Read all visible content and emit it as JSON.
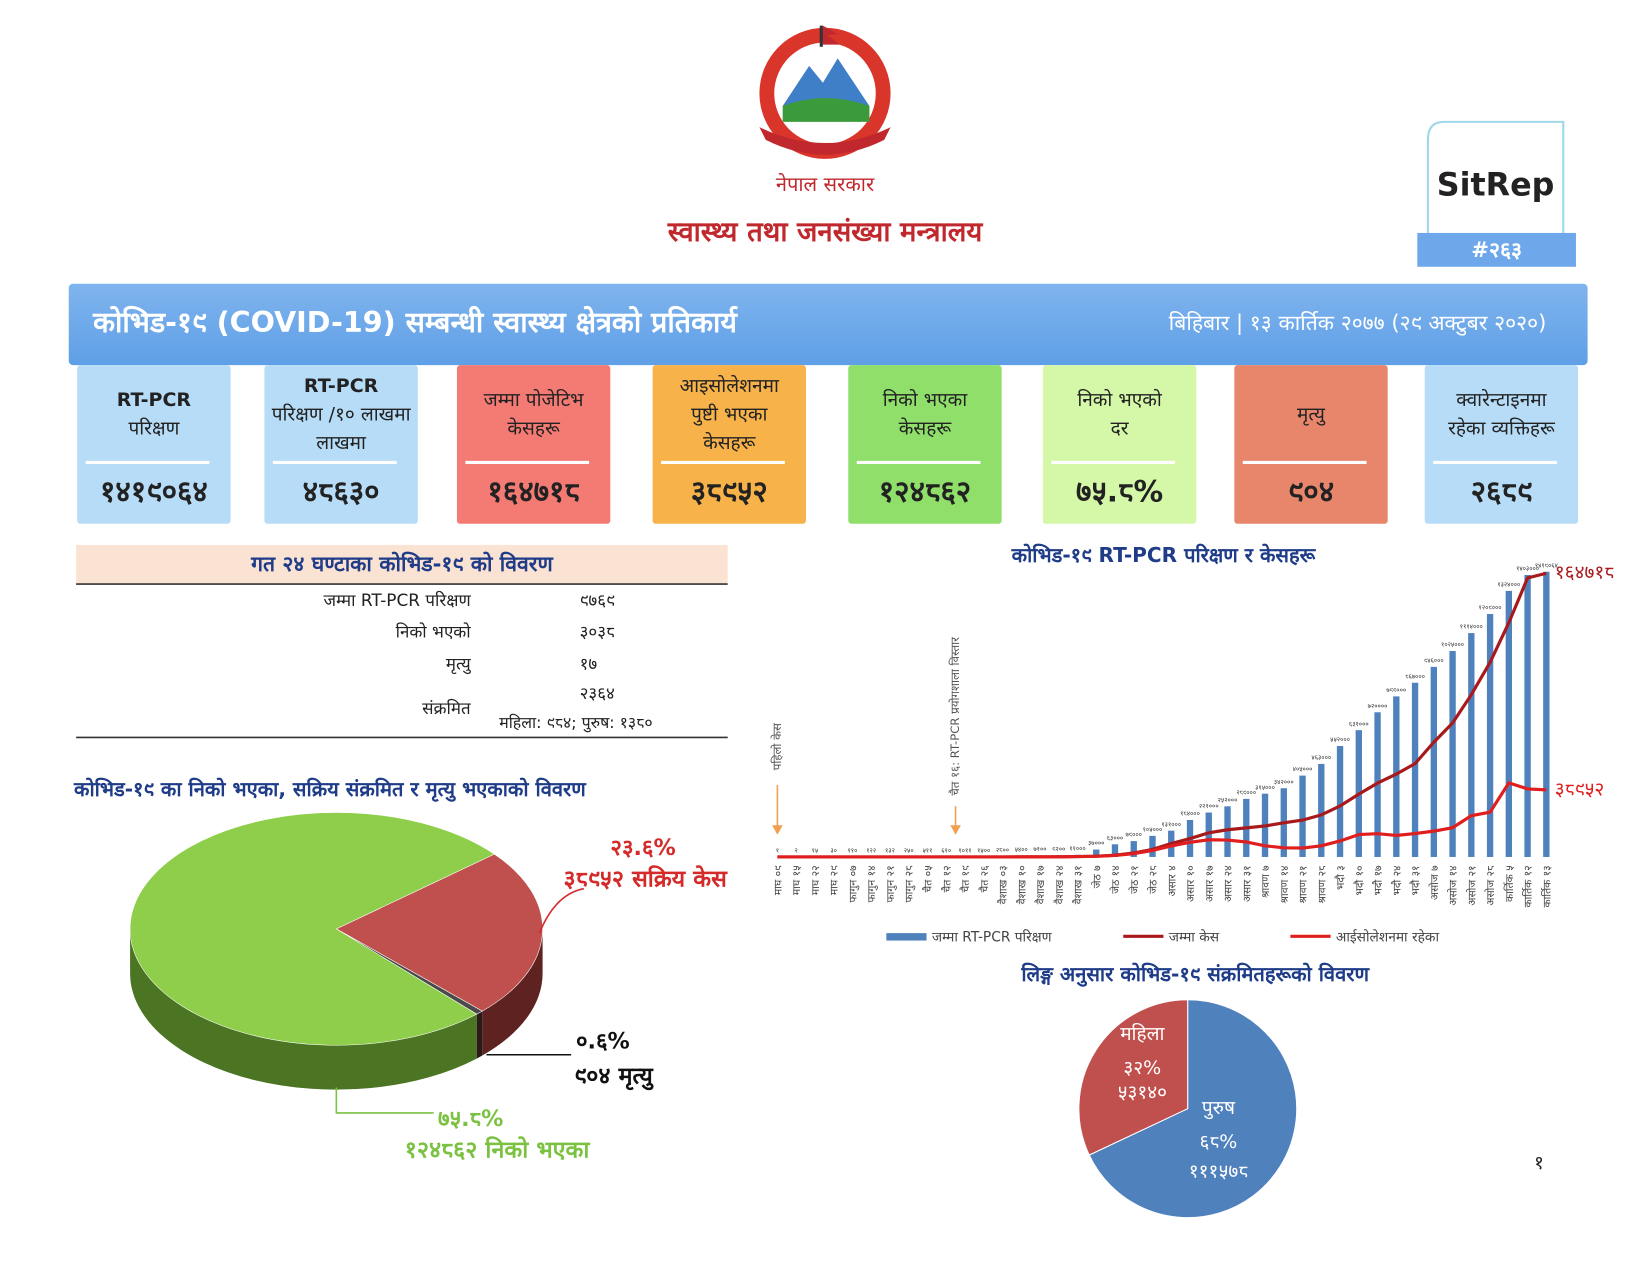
{
  "header": {
    "government": "नेपाल सरकार",
    "ministry": "स्वास्थ्य तथा जनसंख्या मन्त्रालय",
    "sitrep": "SitRep",
    "sitrep_number": "#२६३"
  },
  "banner": {
    "title": "कोभिड-१९ (COVID-19) सम्बन्धी स्वास्थ्य क्षेत्रको प्रतिकार्य",
    "date": "बिहिबार | १३ कार्तिक २०७७ (२९ अक्टुबर २०२०)"
  },
  "cards": [
    {
      "title": [
        "RT-PCR",
        "परिक्षण"
      ],
      "value": "१४१९०६४",
      "color": "#b7dcf7"
    },
    {
      "title": [
        "RT-PCR",
        "परिक्षण /१० लाखमा",
        "लाखमा"
      ],
      "value": "४८६३०",
      "color": "#b7dcf7"
    },
    {
      "title": [
        "जम्मा पोजेटिभ",
        "केसहरू"
      ],
      "value": "१६४७१८",
      "color": "#f47a74"
    },
    {
      "title": [
        "आइसोलेशनमा",
        "पुष्टी भएका",
        "केसहरू"
      ],
      "value": "३८९५२",
      "color": "#f7b24a"
    },
    {
      "title": [
        "निको भएका",
        "केसहरू"
      ],
      "value": "१२४८६२",
      "color": "#8fdf6a"
    },
    {
      "title": [
        "निको भएको",
        "दर"
      ],
      "value": "७५.८%",
      "color": "#d4f7a8"
    },
    {
      "title": [
        "मृत्यु"
      ],
      "value": "९०४",
      "color": "#e8866c"
    },
    {
      "title": [
        "क्वारेन्टाइनमा",
        "रहेका व्यक्तिहरू"
      ],
      "value": "२६८९",
      "color": "#b7dcf7"
    }
  ],
  "last_24h": {
    "title": "गत २४ घण्टाका कोभिड-१९ को विवरण",
    "rows": [
      [
        "जम्मा RT-PCR परिक्षण",
        "९७६९"
      ],
      [
        "निको भएको",
        "३०३८"
      ],
      [
        "मृत्यु",
        "१७"
      ],
      [
        "संक्रमित",
        "२३६४"
      ]
    ],
    "infected_detail": "महिला: ९८४; पुरुष: १३८०"
  },
  "outcome_pie": {
    "type": "pie",
    "title": "कोभिड-१९ का निको भएका, सक्रिय संक्रमित र मृत्यु भएकाको विवरण",
    "values": [
      23.6,
      0.6,
      75.8
    ],
    "value_labels": [
      "२३.६%",
      "०.६%",
      "७५.८%"
    ],
    "labels": [
      "३८९५२ सक्रिय केस",
      "९०४ मृत्यु",
      "१२४८६२ निको भएका"
    ],
    "colors": [
      "#c0504d",
      "#4a4a4a",
      "#8fce4a"
    ],
    "side_colors": [
      "#5e2321",
      "#2a1a1a",
      "#4b7423"
    ],
    "label_colors": [
      "#d42a2a",
      "#111111",
      "#7cc242"
    ]
  },
  "trend_chart": {
    "type": "bar",
    "title": "कोभिड-१९ RT-PCR परिक्षण र केसहरू",
    "categories": [
      "माघ ०९",
      "माघ १५",
      "माघ २२",
      "माघ २९",
      "फागुन ०७",
      "फागुन १४",
      "फागुन २१",
      "फागुन २८",
      "चैत ०५",
      "चैत १२",
      "चैत १९",
      "चैत २६",
      "वैशाख ०३",
      "वैशाख १०",
      "वैशाख १७",
      "वैशाख २४",
      "वैशाख ३१",
      "जेठ ७",
      "जेठ १४",
      "जेठ २१",
      "जेठ २८",
      "असार ४",
      "असार १०",
      "असार १७",
      "असार २४",
      "असार ३१",
      "श्रावण ७",
      "श्रावण १४",
      "श्रावण २१",
      "श्रावण २८",
      "भदौ ३",
      "भदौ १०",
      "भदौ १७",
      "भदौ २४",
      "भदौ ३१",
      "असोज ७",
      "असोज १४",
      "असोज २१",
      "असोज २८",
      "कार्तिक ५",
      "कार्तिक १२",
      "कार्तिक १३"
    ],
    "ylim": [
      0,
      1500000
    ],
    "y2lim": [
      0,
      175000
    ],
    "series": [
      {
        "name": "जम्मा RT-PCR परिक्षण",
        "type": "bar",
        "color": "#4f81bd",
        "values": [
          1,
          2,
          15,
          30,
          110,
          122,
          132,
          250,
          511,
          610,
          1011,
          1500,
          2800,
          5400,
          7100,
          9200,
          11000,
          37000,
          63000,
          79000,
          105000,
          131000,
          184000,
          221000,
          252000,
          289000,
          315000,
          342000,
          405000,
          463000,
          552000,
          631000,
          720000,
          799000,
          867000,
          946000,
          1025000,
          1114000,
          1209000,
          1324000,
          1403000,
          1419064
        ],
        "value_labels": [
          "१",
          "२",
          "१५",
          "३०",
          "११०",
          "१२२",
          "१३२",
          "२५०",
          "५११",
          "६१०",
          "१०११",
          "१५००",
          "२८००",
          "५४००",
          "७१००",
          "९२००",
          "११०००",
          "३७०००",
          "६३०००",
          "७९०००",
          "१०५०००",
          "१३१०००",
          "१८४०००",
          "२२१०००",
          "२५२०००",
          "२८९०००",
          "३१५०००",
          "३४२०००",
          "४०५०००",
          "४६३०००",
          "५५२०००",
          "६३१०००",
          "७२००००",
          "७९९०००",
          "८६७०००",
          "९४६०००",
          "१०२५०००",
          "१११४०००",
          "१२०९०००",
          "१३२४०००",
          "१४०३०००",
          "१४१९०६४"
        ]
      },
      {
        "name": "जम्मा केस",
        "type": "line",
        "axis": "y2",
        "color": "#a8191c",
        "values": [
          1,
          1,
          1,
          1,
          1,
          1,
          1,
          1,
          2,
          5,
          9,
          16,
          31,
          57,
          75,
          110,
          250,
          450,
          1000,
          2300,
          4400,
          7800,
          10700,
          14000,
          15800,
          16900,
          18000,
          19800,
          21400,
          24400,
          29600,
          36500,
          42900,
          48100,
          54200,
          66600,
          77800,
          94200,
          113000,
          136000,
          162000,
          164718
        ],
        "value_labels": [
          null,
          null,
          null,
          null,
          null,
          null,
          null,
          null,
          null,
          null,
          null,
          null,
          null,
          null,
          null,
          null,
          null,
          null,
          null,
          null,
          null,
          null,
          null,
          null,
          null,
          null,
          null,
          null,
          null,
          null,
          null,
          null,
          null,
          null,
          null,
          null,
          null,
          null,
          null,
          null,
          null,
          "१६४७१८"
        ]
      },
      {
        "name": "आईसोलेशनमा रहेका",
        "type": "line",
        "axis": "y2",
        "color": "#e01e1e",
        "values": [
          1,
          1,
          0,
          0,
          0,
          0,
          0,
          0,
          0,
          4,
          8,
          15,
          29,
          45,
          55,
          85,
          220,
          400,
          900,
          1900,
          3800,
          6400,
          8500,
          10000,
          9800,
          8700,
          6500,
          5300,
          5200,
          6500,
          9300,
          13000,
          13500,
          12500,
          13600,
          15000,
          17000,
          24000,
          26000,
          43000,
          39500,
          38952
        ],
        "value_labels": [
          null,
          null,
          null,
          null,
          null,
          null,
          null,
          null,
          null,
          null,
          null,
          null,
          null,
          null,
          null,
          null,
          null,
          null,
          null,
          null,
          null,
          null,
          null,
          null,
          null,
          null,
          null,
          null,
          null,
          null,
          null,
          null,
          null,
          null,
          null,
          null,
          null,
          null,
          null,
          null,
          null,
          "३८९५२"
        ]
      }
    ],
    "annotations": [
      {
        "text": "पहिलो केस",
        "category": 0
      },
      {
        "text": "चैत १६: RT-PCR प्रयोगशाला विस्तार",
        "category": 9.5
      }
    ]
  },
  "gender_pie": {
    "type": "pie",
    "title": "लिङ्ग अनुसार कोभिड-१९ संक्रमितहरूको विवरण",
    "categories": [
      "महिला",
      "पुरुष"
    ],
    "values": [
      32,
      68
    ],
    "value_labels": [
      "३२%",
      "६८%"
    ],
    "counts": [
      "५३१४०",
      "१११५७८"
    ],
    "colors": [
      "#c0504d",
      "#4f81bd"
    ]
  },
  "page_number": "१"
}
